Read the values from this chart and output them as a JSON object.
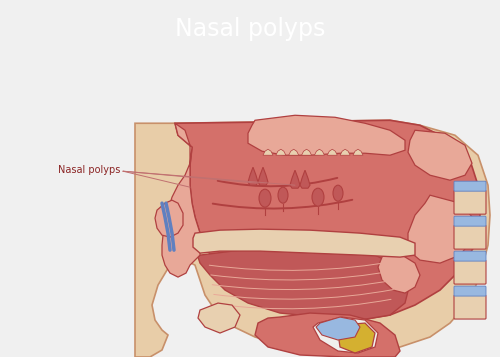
{
  "title": "Nasal polyps",
  "title_color": "#ffffff",
  "header_color": "#5bbbb8",
  "bg_color": "#f0f0f0",
  "label_text": "Nasal polyps",
  "label_color": "#8b2525",
  "skin_fill": "#e8cda8",
  "skin_edge": "#c8906a",
  "mucosa_mid": "#d4706a",
  "mucosa_light": "#e8a898",
  "mucosa_dark": "#c05858",
  "mucosa_tongue": "#c05555",
  "bone_fill": "#e8d0b0",
  "cavity_fill": "#cc6060",
  "lc": "#b04040",
  "lc_thin": "#c06060",
  "blue_fill": "#6080c0",
  "blue_light": "#98b8e0",
  "yellow_fill": "#d4b030",
  "white_fill": "#f0efec",
  "annot_color": "#c07070"
}
